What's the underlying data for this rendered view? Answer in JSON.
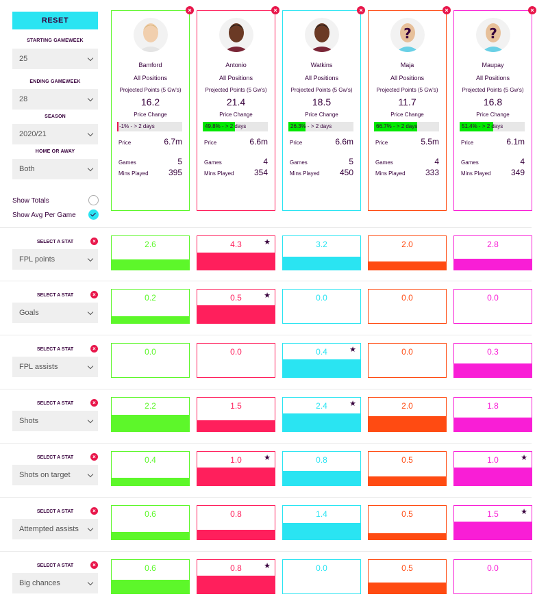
{
  "sidebar": {
    "reset_label": "RESET",
    "starting_gw_label": "STARTING GAMEWEEK",
    "starting_gw_value": "25",
    "ending_gw_label": "ENDING GAMEWEEK",
    "ending_gw_value": "28",
    "season_label": "SEASON",
    "season_value": "2020/21",
    "home_away_label": "HOME OR AWAY",
    "home_away_value": "Both",
    "show_totals_label": "Show Totals",
    "show_avg_label": "Show Avg Per Game"
  },
  "colors": {
    "green": "#5df72a",
    "red": "#ff1f5c",
    "cyan": "#2ae4f2",
    "orange": "#ff4b12",
    "magenta": "#f91ed6"
  },
  "labels": {
    "all_positions": "All Positions",
    "projected": "Projected Points (5 Gw's)",
    "price_change": "Price Change",
    "price": "Price",
    "games": "Games",
    "mins": "Mins Played",
    "select_stat": "SELECT A STAT"
  },
  "players": [
    {
      "name": "Bamford",
      "proj": "16.2",
      "pc_text": "-1% - > 2 days",
      "pc_fill": 0.01,
      "price": "6.7m",
      "games": "5",
      "mins": "395",
      "avatar": "face-light"
    },
    {
      "name": "Antonio",
      "proj": "21.4",
      "pc_text": "49.8% - > 2 days",
      "pc_fill": 0.498,
      "price": "6.6m",
      "games": "4",
      "mins": "354",
      "avatar": "face-dark"
    },
    {
      "name": "Watkins",
      "proj": "18.5",
      "pc_text": "26.3% - > 2 days",
      "pc_fill": 0.263,
      "price": "6.6m",
      "games": "5",
      "mins": "450",
      "avatar": "face-dark"
    },
    {
      "name": "Maja",
      "proj": "11.7",
      "pc_text": "66.7% - > 2 days",
      "pc_fill": 0.667,
      "price": "5.5m",
      "games": "4",
      "mins": "333",
      "avatar": "unknown"
    },
    {
      "name": "Maupay",
      "proj": "16.8",
      "pc_text": "51.4% - > 2 days",
      "pc_fill": 0.514,
      "price": "6.1m",
      "games": "4",
      "mins": "349",
      "avatar": "unknown"
    }
  ],
  "stats": [
    {
      "name": "FPL points",
      "values": [
        "2.6",
        "4.3",
        "3.2",
        "2.0",
        "2.8"
      ],
      "fills": [
        0.32,
        0.52,
        0.39,
        0.24,
        0.34
      ],
      "star": 1
    },
    {
      "name": "Goals",
      "values": [
        "0.2",
        "0.5",
        "0.0",
        "0.0",
        "0.0"
      ],
      "fills": [
        0.21,
        0.55,
        0,
        0,
        0
      ],
      "star": 1
    },
    {
      "name": "FPL assists",
      "values": [
        "0.0",
        "0.0",
        "0.4",
        "0.0",
        "0.3"
      ],
      "fills": [
        0,
        0,
        0.55,
        0,
        0.41
      ],
      "star": 2
    },
    {
      "name": "Shots",
      "values": [
        "2.2",
        "1.5",
        "2.4",
        "2.0",
        "1.8"
      ],
      "fills": [
        0.5,
        0.34,
        0.55,
        0.46,
        0.41
      ],
      "star": 2
    },
    {
      "name": "Shots on target",
      "values": [
        "0.4",
        "1.0",
        "0.8",
        "0.5",
        "1.0"
      ],
      "fills": [
        0.22,
        0.55,
        0.44,
        0.28,
        0.55
      ],
      "star": [
        1,
        4
      ]
    },
    {
      "name": "Attempted assists",
      "values": [
        "0.6",
        "0.8",
        "1.4",
        "0.5",
        "1.5"
      ],
      "fills": [
        0.22,
        0.29,
        0.51,
        0.18,
        0.55
      ],
      "star": 4
    },
    {
      "name": "Big chances",
      "values": [
        "0.6",
        "0.8",
        "0.0",
        "0.5",
        "0.0"
      ],
      "fills": [
        0.41,
        0.55,
        0,
        0.34,
        0
      ],
      "star": 1
    }
  ]
}
